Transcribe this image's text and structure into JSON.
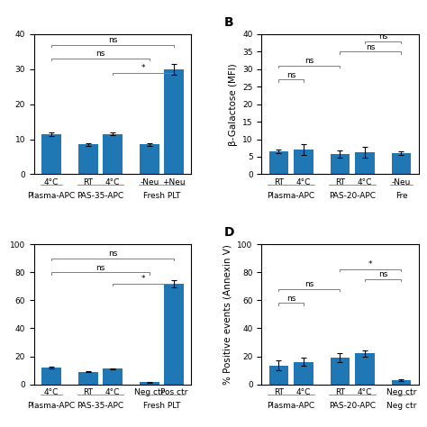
{
  "chart_data": [
    {
      "type": "bar",
      "categories": [
        "4°C",
        "RT",
        "4°C",
        "-Neu",
        "+Neu"
      ],
      "values": [
        11.5,
        8.5,
        11.5,
        8.5,
        30.0
      ],
      "errors": [
        0.5,
        0.3,
        0.4,
        0.3,
        1.5
      ],
      "groups": [
        {
          "name": "Plasma-APC",
          "bars": [
            0
          ]
        },
        {
          "name": "PAS-35-APC",
          "bars": [
            1,
            2
          ]
        },
        {
          "name": "Fresh PLT",
          "bars": [
            3,
            4
          ]
        }
      ],
      "significance": [
        {
          "from": 0,
          "to": 3,
          "y": 33,
          "label": "ns"
        },
        {
          "from": 0,
          "to": 4,
          "y": 37,
          "label": "ns"
        },
        {
          "from": 2,
          "to": 4,
          "y": 29,
          "label": "*"
        }
      ],
      "ylim": [
        0,
        40
      ],
      "yticks": [
        0,
        10,
        20,
        30,
        40
      ]
    },
    {
      "type": "bar",
      "panel_label": "B",
      "ylabel": "β-Galactose (MFI)",
      "categories": [
        "RT",
        "4°C",
        "RT",
        "4°C",
        "-Neu"
      ],
      "values": [
        6.5,
        7.0,
        5.8,
        6.3,
        6.0
      ],
      "errors": [
        0.5,
        1.5,
        1.0,
        1.5,
        0.6
      ],
      "groups": [
        {
          "name": "Plasma-APC",
          "bars": [
            0,
            1
          ]
        },
        {
          "name": "PAS-20-APC",
          "bars": [
            2,
            3
          ]
        },
        {
          "name": "Fre",
          "bars": [
            4
          ]
        }
      ],
      "significance": [
        {
          "from": 0,
          "to": 1,
          "y": 27,
          "label": "ns"
        },
        {
          "from": 0,
          "to": 2,
          "y": 31,
          "label": "ns"
        },
        {
          "from": 2,
          "to": 4,
          "y": 35,
          "label": "ns"
        },
        {
          "from": 3,
          "to": 4,
          "y": 38,
          "label": "ns"
        }
      ],
      "ylim": [
        0,
        40
      ],
      "yticks": [
        0,
        5,
        10,
        15,
        20,
        25,
        30,
        35,
        40
      ]
    },
    {
      "type": "bar",
      "categories": [
        "4°C",
        "RT",
        "4°C",
        "Neg ctr",
        "Pos ctr"
      ],
      "values": [
        12.0,
        9.0,
        11.0,
        1.5,
        72.0
      ],
      "errors": [
        0.5,
        0.4,
        0.5,
        0.3,
        2.5
      ],
      "groups": [
        {
          "name": "Plasma-APC",
          "bars": [
            0
          ]
        },
        {
          "name": "PAS-35-APC",
          "bars": [
            1,
            2
          ]
        },
        {
          "name": "Fresh PLT",
          "bars": [
            3,
            4
          ]
        }
      ],
      "significance": [
        {
          "from": 0,
          "to": 3,
          "y": 80,
          "label": "ns"
        },
        {
          "from": 0,
          "to": 4,
          "y": 90,
          "label": "ns"
        },
        {
          "from": 2,
          "to": 4,
          "y": 72,
          "label": "*"
        }
      ],
      "ylim": [
        0,
        100
      ],
      "yticks": [
        0,
        20,
        40,
        60,
        80,
        100
      ]
    },
    {
      "type": "bar",
      "panel_label": "D",
      "ylabel": "% Positive events (Annexin V)",
      "categories": [
        "RT",
        "4°C",
        "RT",
        "4°C",
        "Neg ctr"
      ],
      "values": [
        13.5,
        16.0,
        19.0,
        22.0,
        3.0
      ],
      "errors": [
        3.5,
        3.0,
        3.0,
        2.5,
        0.8
      ],
      "groups": [
        {
          "name": "Plasma-APC",
          "bars": [
            0,
            1
          ]
        },
        {
          "name": "PAS-20-APC",
          "bars": [
            2,
            3
          ]
        },
        {
          "name": "Neg ctr",
          "bars": [
            4
          ]
        }
      ],
      "significance": [
        {
          "from": 0,
          "to": 1,
          "y": 58,
          "label": "ns"
        },
        {
          "from": 0,
          "to": 2,
          "y": 68,
          "label": "ns"
        },
        {
          "from": 2,
          "to": 4,
          "y": 82,
          "label": "*"
        },
        {
          "from": 3,
          "to": 4,
          "y": 75,
          "label": "ns"
        }
      ],
      "ylim": [
        0,
        100
      ],
      "yticks": [
        0,
        20,
        40,
        60,
        80,
        100
      ]
    }
  ]
}
